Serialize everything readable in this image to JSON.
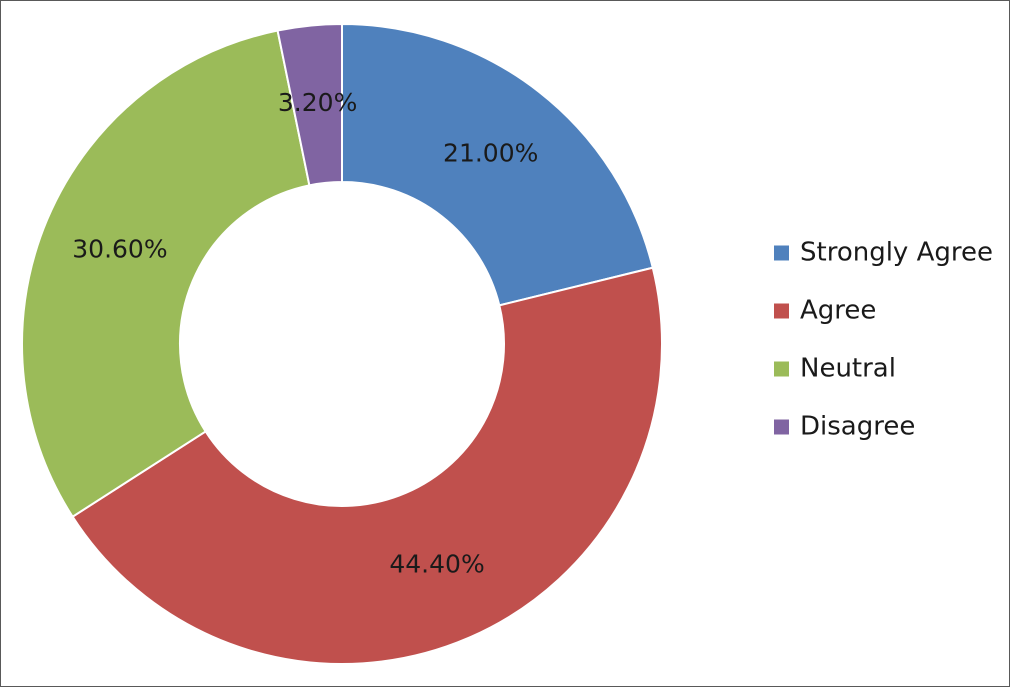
{
  "chart_data": {
    "type": "pie",
    "variant": "donut",
    "categories": [
      "Strongly Agree",
      "Agree",
      "Neutral",
      "Disagree"
    ],
    "values": [
      21.0,
      44.4,
      30.6,
      3.2
    ],
    "value_labels": [
      "21.00%",
      "44.40%",
      "30.60%",
      "3.20%"
    ],
    "colors": [
      "#4f81bd",
      "#c0504d",
      "#9bbb59",
      "#8064a2"
    ],
    "title": "",
    "legend": {
      "position": "right",
      "entries": [
        "Strongly Agree",
        "Agree",
        "Neutral",
        "Disagree"
      ]
    }
  }
}
